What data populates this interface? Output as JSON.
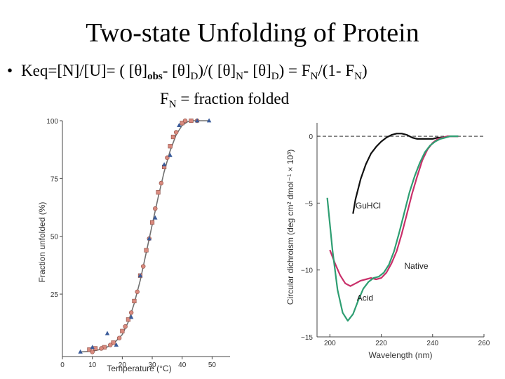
{
  "slide": {
    "title": "Two-state Unfolding of Protein",
    "bullet": "•",
    "eq": {
      "p1": "Keq=[N]/[U]= ( [θ]",
      "s1": "obs",
      "p2": "- [θ]",
      "s2": "D",
      "p3": ")/( [θ]",
      "s3": "N",
      "p4": "- [θ]",
      "s4": "D",
      "p5": ") = F",
      "s5": "N",
      "p6": "/(1- F",
      "s6": "N",
      "p7": ")"
    },
    "sub": {
      "p1": "F",
      "s1": "N",
      "p2": " = fraction folded"
    }
  },
  "chart_data": [
    {
      "type": "scatter",
      "title": "",
      "xlabel": "Temperature (°C)",
      "ylabel": "Fraction unfolded (%)",
      "xlim": [
        0,
        56
      ],
      "ylim": [
        -2,
        100
      ],
      "xticks": [
        0,
        10,
        20,
        30,
        40,
        50
      ],
      "yticks": [
        25,
        50,
        75,
        100
      ],
      "curve": {
        "color": "#707070",
        "x": [
          6,
          10,
          14,
          17,
          20,
          22,
          24,
          26,
          28,
          30,
          32,
          34,
          36,
          38,
          40,
          42,
          44,
          46,
          49
        ],
        "y": [
          0,
          0.3,
          1.5,
          3.5,
          7.5,
          13,
          21,
          31,
          43,
          55,
          67,
          78,
          87,
          94,
          98,
          99.7,
          100,
          100,
          100
        ]
      },
      "series": [
        {
          "marker": "square",
          "color": "#d98a7e",
          "x": [
            9,
            11,
            14,
            17,
            20,
            22,
            24,
            26,
            28,
            30,
            32,
            34,
            36,
            37,
            40,
            43
          ],
          "y": [
            1,
            1.5,
            2,
            4,
            9,
            14,
            22,
            33,
            44,
            56,
            69,
            80,
            89,
            93,
            99,
            100
          ]
        },
        {
          "marker": "circle",
          "color": "#d98a7e",
          "x": [
            10,
            13,
            16,
            19,
            21,
            23,
            25,
            27,
            29,
            31,
            33,
            35,
            38,
            41,
            45
          ],
          "y": [
            0,
            1.5,
            3,
            6,
            11,
            17,
            26,
            37,
            49,
            62,
            73,
            84,
            95,
            100,
            100
          ]
        },
        {
          "marker": "triangle",
          "color": "#3a5b9a",
          "x": [
            6,
            10,
            15,
            18,
            23,
            26,
            29,
            31,
            34,
            36,
            39,
            45,
            49
          ],
          "y": [
            0,
            2,
            8,
            3,
            15,
            33,
            49,
            58,
            81,
            85,
            98,
            100,
            100
          ]
        }
      ]
    },
    {
      "type": "line",
      "title": "",
      "xlabel": "Wavelength (nm)",
      "ylabel": "Circular dichroism (deg cm² dmol⁻¹ × 10³)",
      "xlim": [
        195,
        260
      ],
      "ylim": [
        -15,
        1
      ],
      "xticks": [
        200,
        220,
        240,
        260
      ],
      "yticks": [
        0,
        -5,
        -10,
        -15
      ],
      "baseline": 0,
      "series": [
        {
          "name": "GuHCl",
          "color": "#111111",
          "x": [
            209,
            210,
            212,
            214,
            216,
            218,
            220,
            222,
            224,
            226,
            228,
            230,
            232,
            234,
            236,
            238,
            240,
            242,
            244,
            246,
            248,
            250
          ],
          "y": [
            -5.8,
            -4.7,
            -3.2,
            -2.1,
            -1.3,
            -0.8,
            -0.4,
            -0.1,
            0.1,
            0.2,
            0.2,
            0.1,
            -0.1,
            -0.2,
            -0.2,
            -0.2,
            -0.2,
            -0.1,
            -0.1,
            0,
            0,
            0
          ]
        },
        {
          "name": "Native",
          "color": "#c9306a",
          "x": [
            200,
            202,
            204,
            206,
            208,
            210,
            212,
            214,
            216,
            218,
            220,
            222,
            224,
            226,
            228,
            230,
            232,
            234,
            236,
            238,
            240,
            242,
            244,
            246,
            248,
            250
          ],
          "y": [
            -8.5,
            -9.5,
            -10.4,
            -11,
            -11.2,
            -11,
            -10.8,
            -10.7,
            -10.6,
            -10.7,
            -10.6,
            -10.2,
            -9.5,
            -8.6,
            -7.3,
            -5.8,
            -4.3,
            -3,
            -1.8,
            -1,
            -0.5,
            -0.2,
            -0.1,
            0,
            0,
            0
          ]
        },
        {
          "name": "Acid",
          "color": "#2e9e72",
          "x": [
            199,
            201,
            203,
            205,
            207,
            209,
            211,
            213,
            215,
            217,
            219,
            221,
            223,
            225,
            227,
            229,
            231,
            233,
            235,
            237,
            239,
            241,
            243,
            245,
            247,
            249,
            250
          ],
          "y": [
            -4.6,
            -8.5,
            -11.5,
            -13.2,
            -13.8,
            -13.3,
            -12.3,
            -11.4,
            -10.9,
            -10.6,
            -10.5,
            -10.2,
            -9.6,
            -8.6,
            -7.2,
            -5.7,
            -4.2,
            -3,
            -2,
            -1.2,
            -0.7,
            -0.4,
            -0.2,
            -0.1,
            0,
            0,
            0
          ]
        }
      ],
      "labels": [
        "GuHCl",
        "Native",
        "Acid"
      ]
    }
  ]
}
